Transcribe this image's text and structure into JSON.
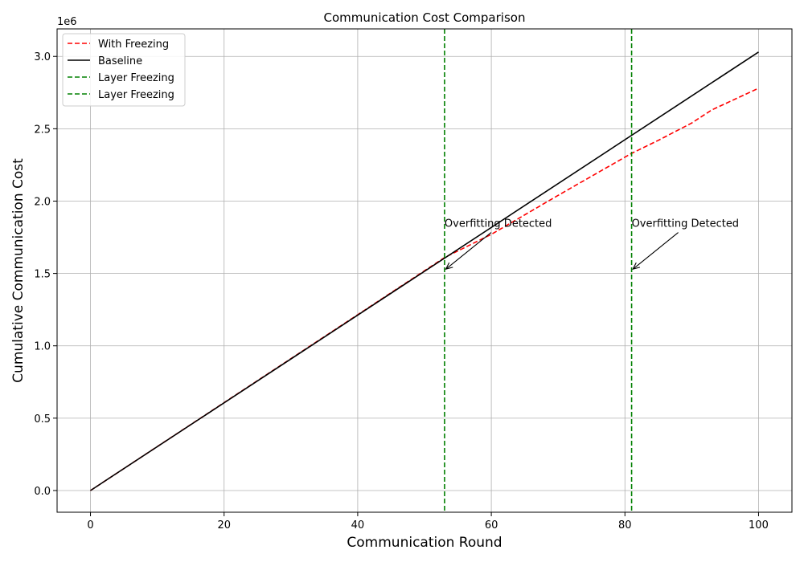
{
  "chart_data": {
    "type": "line",
    "title": "Communication Cost Comparison",
    "xlabel": "Communication Round",
    "ylabel": "Cumulative Communication Cost",
    "y_offset_label": "1e6",
    "y_scale_factor": 1000000,
    "xlim": [
      -5,
      105
    ],
    "ylim": [
      -150000,
      3190000
    ],
    "x_ticks": [
      0,
      20,
      40,
      60,
      80,
      100
    ],
    "y_ticks": [
      0.0,
      0.5,
      1.0,
      1.5,
      2.0,
      2.5,
      3.0
    ],
    "y_tick_labels": [
      "0.0",
      "0.5",
      "1.0",
      "1.5",
      "2.0",
      "2.5",
      "3.0"
    ],
    "grid": true,
    "legend_placement": "top-left",
    "series": [
      {
        "name": "With Freezing",
        "color": "#ff0000",
        "dashed": true,
        "x": [
          0,
          53,
          60,
          70,
          81,
          85,
          90,
          93,
          100
        ],
        "y": [
          0,
          1610000,
          1770000,
          2040000,
          2330000,
          2420000,
          2540000,
          2630000,
          2780000
        ]
      },
      {
        "name": "Baseline",
        "color": "#000000",
        "dashed": false,
        "x": [
          0,
          100
        ],
        "y": [
          0,
          3030000
        ]
      }
    ],
    "vlines": [
      {
        "name": "Layer Freezing",
        "x": 53,
        "color": "#008000"
      },
      {
        "name": "Layer Freezing",
        "x": 81,
        "color": "#008000"
      }
    ],
    "annotations": [
      {
        "text": "Overfitting Detected",
        "text_x": 53,
        "text_y": 1850000,
        "point_x": 53.2,
        "point_y": 1530000
      },
      {
        "text": "Overfitting Detected",
        "text_x": 81,
        "text_y": 1850000,
        "point_x": 81.2,
        "point_y": 1530000
      }
    ]
  }
}
